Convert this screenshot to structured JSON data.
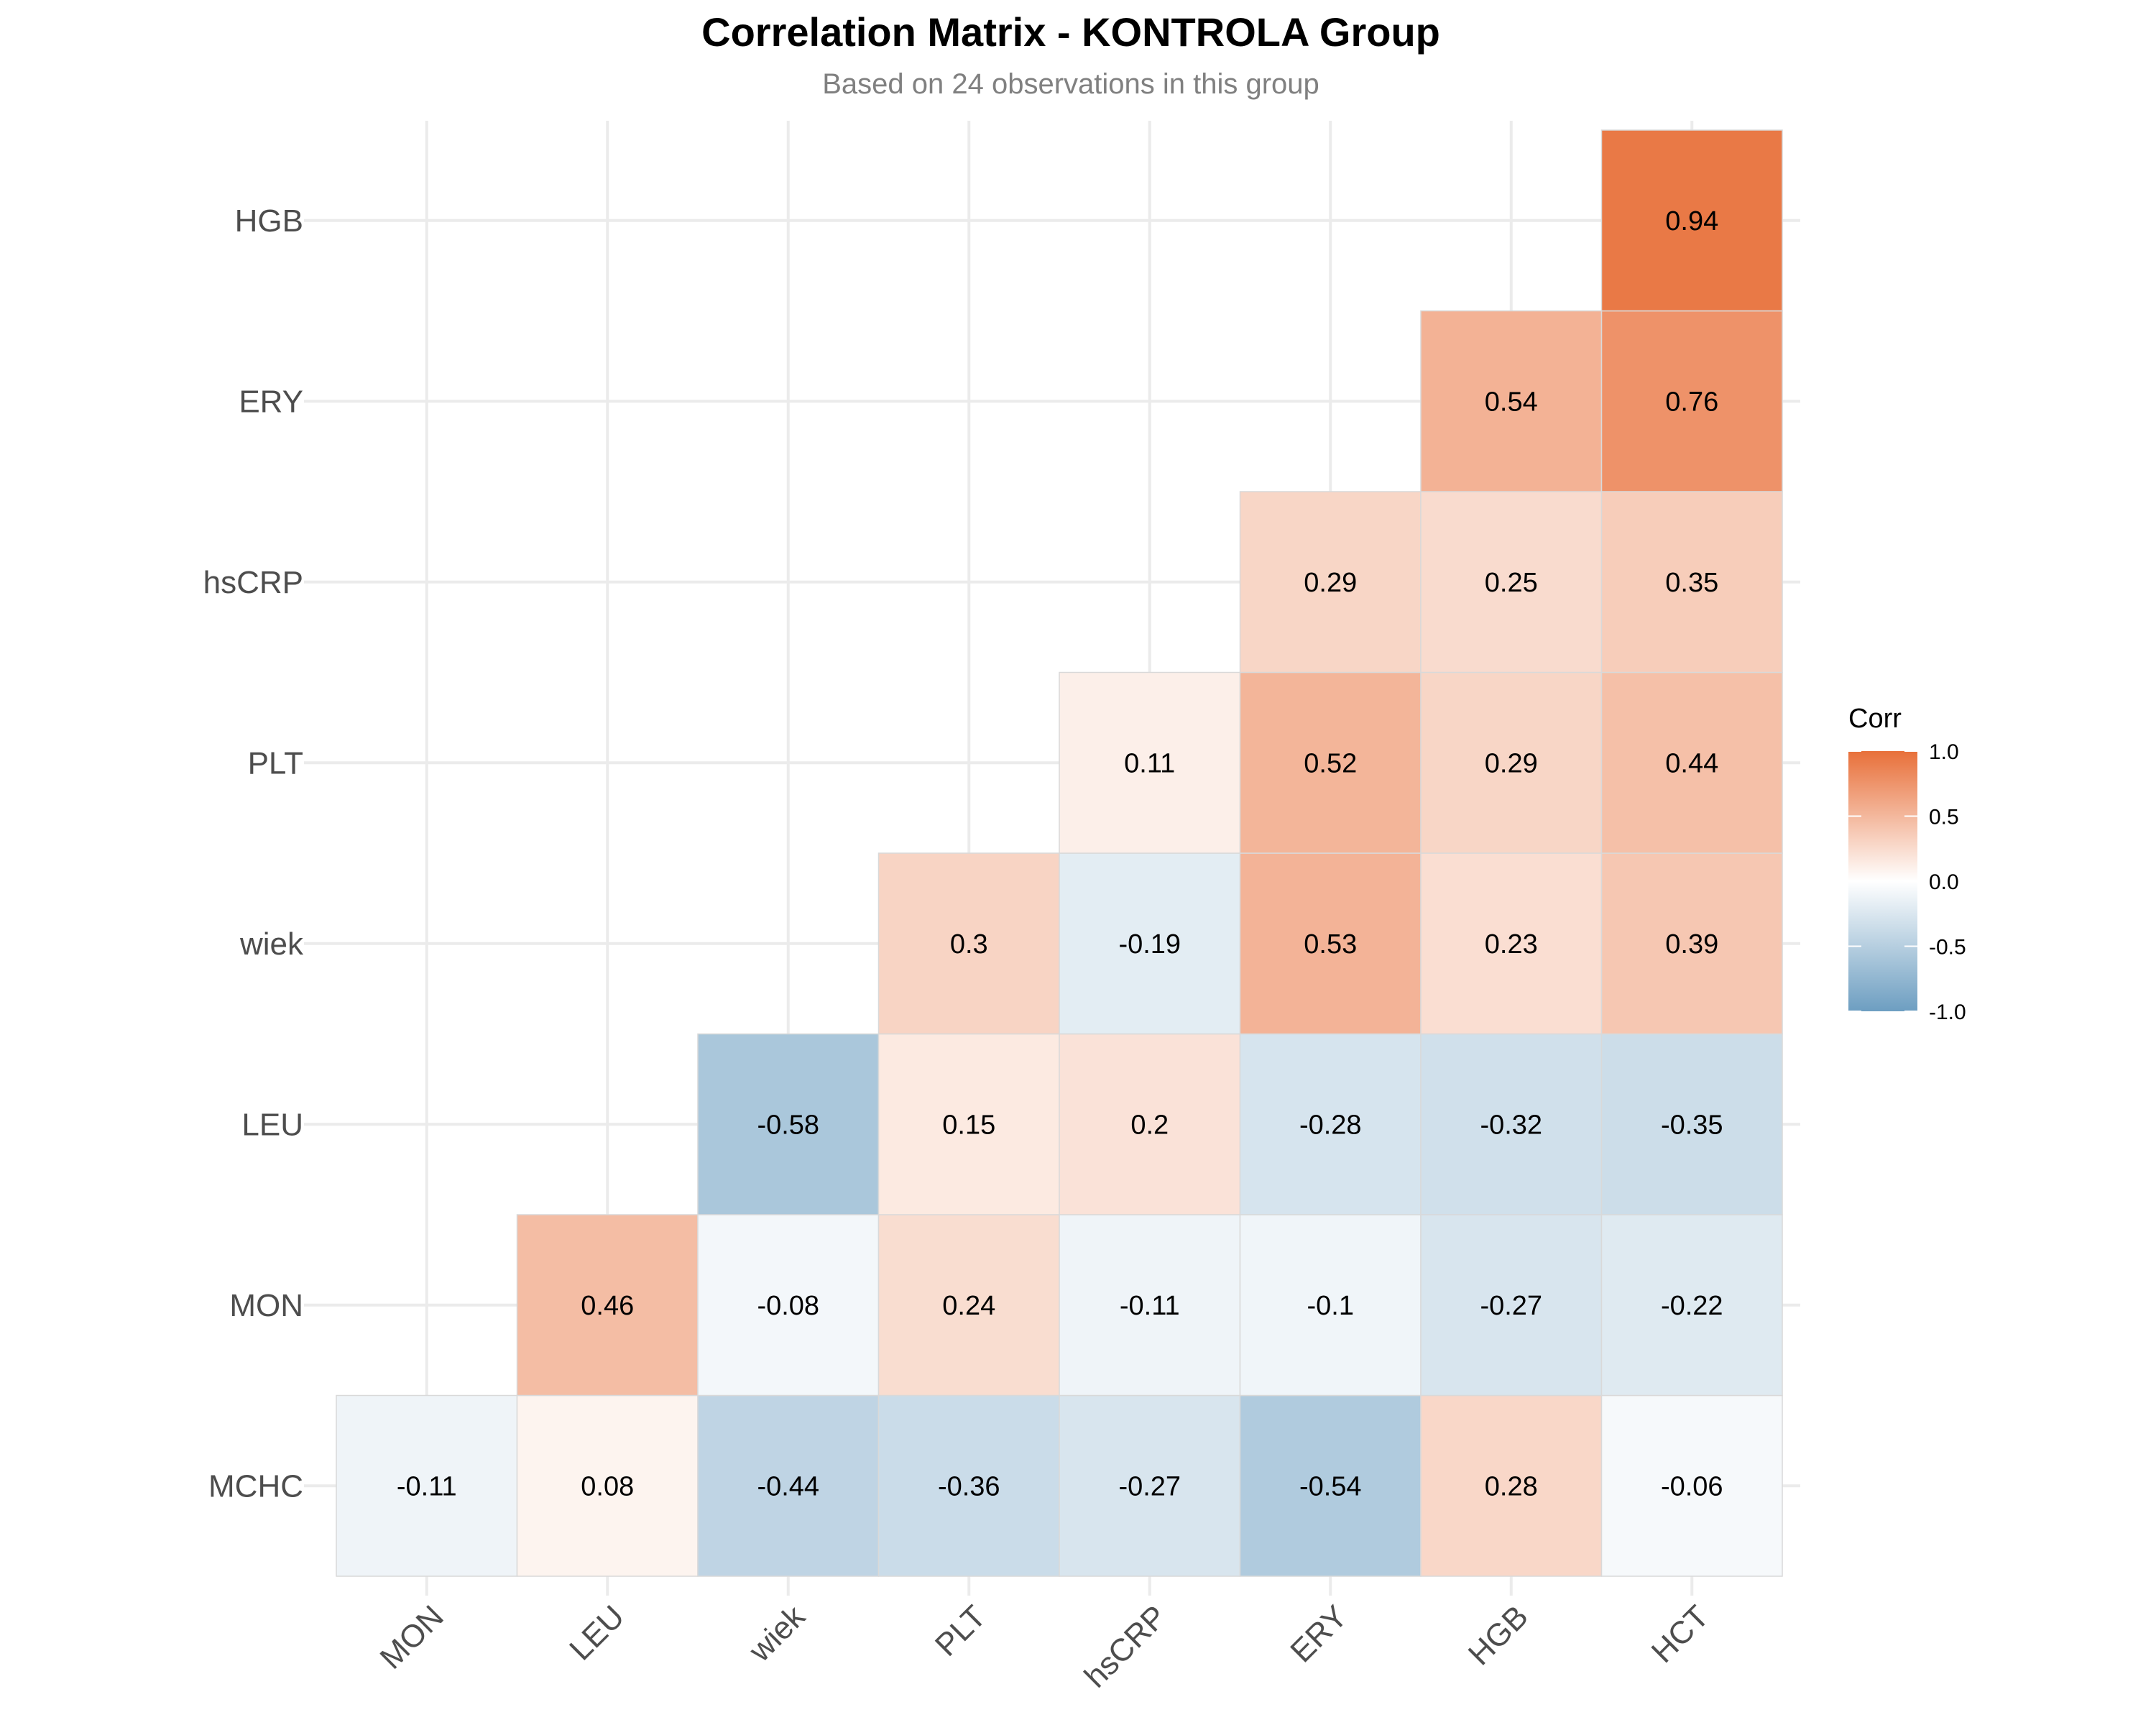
{
  "chart_data": {
    "type": "heatmap",
    "title": "Correlation Matrix - KONTROLA Group",
    "subtitle": "Based on 24 observations in this group",
    "x_categories": [
      "MON",
      "LEU",
      "wiek",
      "PLT",
      "hsCRP",
      "ERY",
      "HGB",
      "HCT"
    ],
    "y_categories": [
      "MCHC",
      "MON",
      "LEU",
      "wiek",
      "PLT",
      "hsCRP",
      "ERY",
      "HGB"
    ],
    "cells": [
      {
        "x": "MON",
        "y": "MCHC",
        "value": -0.11,
        "label": "-0.11"
      },
      {
        "x": "LEU",
        "y": "MCHC",
        "value": 0.08,
        "label": "0.08"
      },
      {
        "x": "wiek",
        "y": "MCHC",
        "value": -0.44,
        "label": "-0.44"
      },
      {
        "x": "PLT",
        "y": "MCHC",
        "value": -0.36,
        "label": "-0.36"
      },
      {
        "x": "hsCRP",
        "y": "MCHC",
        "value": -0.27,
        "label": "-0.27"
      },
      {
        "x": "ERY",
        "y": "MCHC",
        "value": -0.54,
        "label": "-0.54"
      },
      {
        "x": "HGB",
        "y": "MCHC",
        "value": 0.28,
        "label": "0.28"
      },
      {
        "x": "HCT",
        "y": "MCHC",
        "value": -0.06,
        "label": "-0.06"
      },
      {
        "x": "LEU",
        "y": "MON",
        "value": 0.46,
        "label": "0.46"
      },
      {
        "x": "wiek",
        "y": "MON",
        "value": -0.08,
        "label": "-0.08"
      },
      {
        "x": "PLT",
        "y": "MON",
        "value": 0.24,
        "label": "0.24"
      },
      {
        "x": "hsCRP",
        "y": "MON",
        "value": -0.11,
        "label": "-0.11"
      },
      {
        "x": "ERY",
        "y": "MON",
        "value": -0.1,
        "label": "-0.1"
      },
      {
        "x": "HGB",
        "y": "MON",
        "value": -0.27,
        "label": "-0.27"
      },
      {
        "x": "HCT",
        "y": "MON",
        "value": -0.22,
        "label": "-0.22"
      },
      {
        "x": "wiek",
        "y": "LEU",
        "value": -0.58,
        "label": "-0.58"
      },
      {
        "x": "PLT",
        "y": "LEU",
        "value": 0.15,
        "label": "0.15"
      },
      {
        "x": "hsCRP",
        "y": "LEU",
        "value": 0.2,
        "label": "0.2"
      },
      {
        "x": "ERY",
        "y": "LEU",
        "value": -0.28,
        "label": "-0.28"
      },
      {
        "x": "HGB",
        "y": "LEU",
        "value": -0.32,
        "label": "-0.32"
      },
      {
        "x": "HCT",
        "y": "LEU",
        "value": -0.35,
        "label": "-0.35"
      },
      {
        "x": "PLT",
        "y": "wiek",
        "value": 0.3,
        "label": "0.3"
      },
      {
        "x": "hsCRP",
        "y": "wiek",
        "value": -0.19,
        "label": "-0.19"
      },
      {
        "x": "ERY",
        "y": "wiek",
        "value": 0.53,
        "label": "0.53"
      },
      {
        "x": "HGB",
        "y": "wiek",
        "value": 0.23,
        "label": "0.23"
      },
      {
        "x": "HCT",
        "y": "wiek",
        "value": 0.39,
        "label": "0.39"
      },
      {
        "x": "hsCRP",
        "y": "PLT",
        "value": 0.11,
        "label": "0.11"
      },
      {
        "x": "ERY",
        "y": "PLT",
        "value": 0.52,
        "label": "0.52"
      },
      {
        "x": "HGB",
        "y": "PLT",
        "value": 0.29,
        "label": "0.29"
      },
      {
        "x": "HCT",
        "y": "PLT",
        "value": 0.44,
        "label": "0.44"
      },
      {
        "x": "ERY",
        "y": "hsCRP",
        "value": 0.29,
        "label": "0.29"
      },
      {
        "x": "HGB",
        "y": "hsCRP",
        "value": 0.25,
        "label": "0.25"
      },
      {
        "x": "HCT",
        "y": "hsCRP",
        "value": 0.35,
        "label": "0.35"
      },
      {
        "x": "HGB",
        "y": "ERY",
        "value": 0.54,
        "label": "0.54"
      },
      {
        "x": "HCT",
        "y": "ERY",
        "value": 0.76,
        "label": "0.76"
      },
      {
        "x": "HCT",
        "y": "HGB",
        "value": 0.94,
        "label": "0.94"
      }
    ],
    "legend": {
      "title": "Corr",
      "placement": "right",
      "range": [
        -1,
        1
      ],
      "ticks": [
        {
          "value": 1,
          "label": "1.0"
        },
        {
          "value": 0.5,
          "label": "0.5"
        },
        {
          "value": 0,
          "label": "0.0"
        },
        {
          "value": -0.5,
          "label": "-0.5"
        },
        {
          "value": -1,
          "label": "-1.0"
        }
      ]
    },
    "colors": {
      "high": "#E8703A",
      "mid": "#FFFFFF",
      "low": "#6D9EC1",
      "cell_border": "#d9d9d9",
      "grid": "#ebebeb"
    },
    "grid": true,
    "xtick_rotation_deg": 45
  }
}
